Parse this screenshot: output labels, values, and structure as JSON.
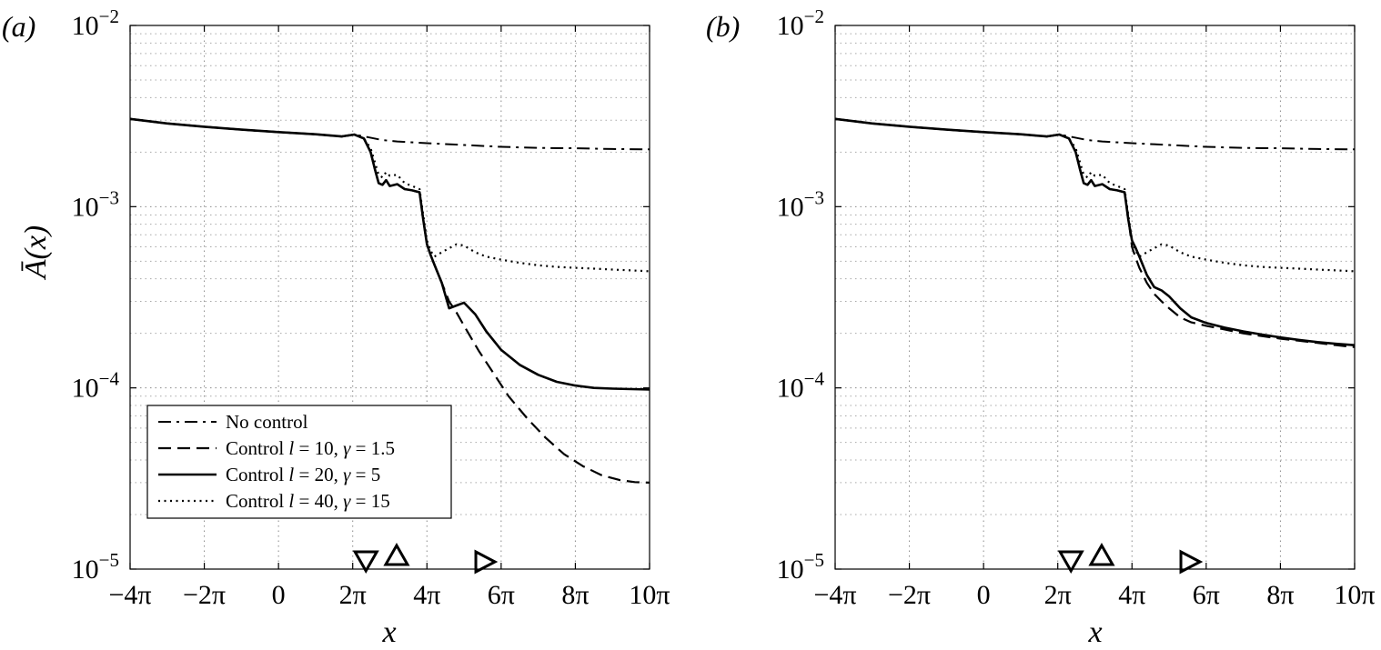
{
  "chart_data": [
    {
      "type": "line",
      "panel_label": "(a)",
      "xlabel": "x",
      "ylabel": "Ā(x)",
      "y_scale": "log",
      "xlim": [
        -12.566,
        31.416
      ],
      "ylim": [
        1e-05,
        0.01
      ],
      "x_ticks": [
        -12.566,
        -6.283,
        0,
        6.283,
        12.566,
        18.85,
        25.133,
        31.416
      ],
      "x_tick_labels": [
        "−4π",
        "−2π",
        "0",
        "2π",
        "4π",
        "6π",
        "8π",
        "10π"
      ],
      "y_ticks": [
        1e-05,
        0.0001,
        0.001,
        0.01
      ],
      "y_tick_labels": [
        {
          "base": "10",
          "exp": "−5"
        },
        {
          "base": "10",
          "exp": "−4"
        },
        {
          "base": "10",
          "exp": "−3"
        },
        {
          "base": "10",
          "exp": "−2"
        }
      ],
      "grid": "on",
      "legend_placement": "lower-left",
      "legend": [
        {
          "style": "dashdot",
          "label_prefix": "No control",
          "l": "",
          "gamma": ""
        },
        {
          "style": "dashed",
          "label_prefix": "Control",
          "l": "10",
          "gamma": "1.5"
        },
        {
          "style": "solid",
          "label_prefix": "Control",
          "l": "20",
          "gamma": "5"
        },
        {
          "style": "dotted",
          "label_prefix": "Control",
          "l": "40",
          "gamma": "15"
        }
      ],
      "markers": [
        {
          "shape": "triangle-down",
          "x": 7.4
        },
        {
          "shape": "triangle-up",
          "x": 10.0
        },
        {
          "shape": "triangle-right",
          "x": 17.4
        }
      ],
      "series": [
        {
          "style": "dashdot",
          "x": [
            -12.566,
            -9.42,
            -6.28,
            -3.14,
            0,
            3.14,
            5.34,
            6.41,
            7.54,
            8.8,
            10.05,
            12.57,
            15.71,
            18.85,
            21.99,
            25.13,
            28.27,
            31.416
          ],
          "y": [
            0.00305,
            0.00288,
            0.00276,
            0.00266,
            0.00258,
            0.00251,
            0.00244,
            0.0025,
            0.00242,
            0.00233,
            0.00229,
            0.00224,
            0.00219,
            0.00214,
            0.00211,
            0.0021,
            0.00208,
            0.00207
          ]
        },
        {
          "style": "solid",
          "x": [
            -12.566,
            -9.42,
            -6.28,
            -3.14,
            0,
            3.14,
            5.34,
            6.41,
            7.23,
            7.8,
            8.17,
            8.48,
            8.8,
            9.11,
            9.42,
            10.05,
            10.68,
            11.31,
            11.94,
            12.25,
            12.57,
            12.88,
            13.19,
            13.82,
            14.45,
            15.08,
            15.71,
            16.65,
            17.59,
            18.85,
            20.42,
            21.99,
            23.56,
            25.13,
            26.7,
            28.27,
            29.85,
            31.416
          ],
          "y": [
            0.00305,
            0.00288,
            0.00276,
            0.00266,
            0.00258,
            0.00251,
            0.00244,
            0.0025,
            0.00238,
            0.002,
            0.0016,
            0.00135,
            0.00132,
            0.0014,
            0.0013,
            0.00133,
            0.00125,
            0.00123,
            0.0012,
            0.00085,
            0.00062,
            0.00054,
            0.00048,
            0.00038,
            0.000275,
            0.000285,
            0.000295,
            0.000255,
            0.000205,
            0.000162,
            0.000134,
            0.000118,
            0.000108,
            0.000103,
            0.0001,
            9.9e-05,
            9.85e-05,
            9.8e-05
          ]
        },
        {
          "style": "dashed",
          "x": [
            -12.566,
            -9.42,
            -6.28,
            -3.14,
            0,
            3.14,
            5.34,
            6.41,
            7.23,
            7.8,
            8.17,
            8.48,
            8.8,
            9.11,
            9.42,
            10.05,
            10.68,
            11.31,
            11.94,
            12.25,
            12.57,
            12.88,
            13.19,
            13.82,
            14.45,
            15.08,
            15.71,
            16.96,
            18.22,
            19.48,
            21.05,
            22.62,
            24.19,
            25.76,
            27.33,
            28.9,
            30.16,
            31.416
          ],
          "y": [
            0.00305,
            0.00288,
            0.00276,
            0.00266,
            0.00258,
            0.00251,
            0.00244,
            0.0025,
            0.00238,
            0.002,
            0.0016,
            0.00135,
            0.00132,
            0.0014,
            0.0013,
            0.00133,
            0.00125,
            0.00123,
            0.0012,
            0.00085,
            0.00062,
            0.00054,
            0.00048,
            0.00038,
            0.0003,
            0.00026,
            0.00022,
            0.00016,
            0.00012,
            9e-05,
            6.8e-05,
            5.3e-05,
            4.3e-05,
            3.7e-05,
            3.3e-05,
            3.1e-05,
            3.02e-05,
            3e-05
          ]
        },
        {
          "style": "dotted",
          "x": [
            -12.566,
            -9.42,
            -6.28,
            -3.14,
            0,
            3.14,
            5.34,
            6.41,
            7.23,
            7.8,
            8.17,
            8.48,
            8.8,
            9.11,
            9.42,
            10.05,
            10.68,
            11.31,
            11.94,
            12.25,
            12.57,
            12.88,
            13.19,
            13.82,
            14.45,
            15.08,
            15.71,
            16.65,
            17.59,
            18.85,
            20.42,
            21.99,
            23.56,
            25.13,
            26.7,
            28.27,
            29.85,
            31.416
          ],
          "y": [
            0.00305,
            0.00288,
            0.00276,
            0.00266,
            0.00258,
            0.00251,
            0.00244,
            0.0025,
            0.00238,
            0.0021,
            0.00175,
            0.0015,
            0.00145,
            0.00155,
            0.00148,
            0.0015,
            0.00135,
            0.0013,
            0.00125,
            0.0009,
            0.00065,
            0.00057,
            0.00053,
            0.00056,
            0.00059,
            0.00062,
            0.00061,
            0.00056,
            0.00053,
            0.00051,
            0.00049,
            0.000475,
            0.000465,
            0.00046,
            0.000455,
            0.00045,
            0.000445,
            0.00044
          ]
        }
      ]
    },
    {
      "type": "line",
      "panel_label": "(b)",
      "xlabel": "x",
      "ylabel": "",
      "y_scale": "log",
      "xlim": [
        -12.566,
        31.416
      ],
      "ylim": [
        1e-05,
        0.01
      ],
      "x_ticks": [
        -12.566,
        -6.283,
        0,
        6.283,
        12.566,
        18.85,
        25.133,
        31.416
      ],
      "x_tick_labels": [
        "−4π",
        "−2π",
        "0",
        "2π",
        "4π",
        "6π",
        "8π",
        "10π"
      ],
      "y_ticks": [
        1e-05,
        0.0001,
        0.001,
        0.01
      ],
      "y_tick_labels": [
        {
          "base": "10",
          "exp": "−5"
        },
        {
          "base": "10",
          "exp": "−4"
        },
        {
          "base": "10",
          "exp": "−3"
        },
        {
          "base": "10",
          "exp": "−2"
        }
      ],
      "grid": "on",
      "legend": [],
      "markers": [
        {
          "shape": "triangle-down",
          "x": 7.4
        },
        {
          "shape": "triangle-up",
          "x": 10.0
        },
        {
          "shape": "triangle-right",
          "x": 17.4
        }
      ],
      "series": [
        {
          "style": "dashdot",
          "x": [
            -12.566,
            -9.42,
            -6.28,
            -3.14,
            0,
            3.14,
            5.34,
            6.41,
            7.54,
            8.8,
            10.05,
            12.57,
            15.71,
            18.85,
            21.99,
            25.13,
            28.27,
            31.416
          ],
          "y": [
            0.00305,
            0.00288,
            0.00276,
            0.00266,
            0.00258,
            0.00251,
            0.00244,
            0.0025,
            0.00242,
            0.00233,
            0.00229,
            0.00224,
            0.00219,
            0.00214,
            0.00211,
            0.0021,
            0.00208,
            0.00207
          ]
        },
        {
          "style": "dotted",
          "x": [
            -12.566,
            -9.42,
            -6.28,
            -3.14,
            0,
            3.14,
            5.34,
            6.41,
            7.23,
            7.8,
            8.17,
            8.48,
            8.8,
            9.11,
            9.42,
            10.05,
            10.68,
            11.31,
            11.94,
            12.25,
            12.57,
            12.88,
            13.19,
            13.82,
            14.45,
            15.08,
            15.71,
            16.65,
            17.59,
            18.85,
            20.42,
            21.99,
            23.56,
            25.13,
            26.7,
            28.27,
            29.85,
            31.416
          ],
          "y": [
            0.00305,
            0.00288,
            0.00276,
            0.00266,
            0.00258,
            0.00251,
            0.00244,
            0.0025,
            0.00238,
            0.0021,
            0.00175,
            0.0015,
            0.00145,
            0.00155,
            0.00148,
            0.0015,
            0.00135,
            0.0013,
            0.00125,
            0.0009,
            0.00065,
            0.00057,
            0.00053,
            0.00056,
            0.00059,
            0.00062,
            0.00061,
            0.00056,
            0.00053,
            0.00051,
            0.00049,
            0.000475,
            0.000465,
            0.00046,
            0.000455,
            0.00045,
            0.000445,
            0.00044
          ]
        },
        {
          "style": "dashed",
          "x": [
            -12.566,
            -9.42,
            -6.28,
            -3.14,
            0,
            3.14,
            5.34,
            6.41,
            7.23,
            7.8,
            8.17,
            8.48,
            8.8,
            9.11,
            9.42,
            10.05,
            10.68,
            11.31,
            11.94,
            12.25,
            12.57,
            12.88,
            13.19,
            13.82,
            14.45,
            15.08,
            15.71,
            16.65,
            17.59,
            18.85,
            20.42,
            21.99,
            23.56,
            25.13,
            26.7,
            28.27,
            29.85,
            31.416
          ],
          "y": [
            0.00305,
            0.00288,
            0.00276,
            0.00266,
            0.00258,
            0.00251,
            0.00244,
            0.0025,
            0.00238,
            0.002,
            0.0016,
            0.00135,
            0.00132,
            0.0014,
            0.0013,
            0.00133,
            0.00125,
            0.00123,
            0.0012,
            0.00087,
            0.0006,
            0.00052,
            0.00046,
            0.00038,
            0.00033,
            0.0003,
            0.000275,
            0.000245,
            0.00023,
            0.00022,
            0.00021,
            0.0002,
            0.000193,
            0.000187,
            0.000182,
            0.000177,
            0.000172,
            0.000168
          ]
        },
        {
          "style": "solid",
          "x": [
            -12.566,
            -9.42,
            -6.28,
            -3.14,
            0,
            3.14,
            5.34,
            6.41,
            7.23,
            7.8,
            8.17,
            8.48,
            8.8,
            9.11,
            9.42,
            10.05,
            10.68,
            11.31,
            11.94,
            12.25,
            12.57,
            12.88,
            13.19,
            13.82,
            14.45,
            15.08,
            15.71,
            16.65,
            17.59,
            18.85,
            20.42,
            21.99,
            23.56,
            25.13,
            26.7,
            28.27,
            29.85,
            31.416
          ],
          "y": [
            0.00305,
            0.00288,
            0.00276,
            0.00266,
            0.00258,
            0.00251,
            0.00244,
            0.0025,
            0.00238,
            0.002,
            0.0016,
            0.00135,
            0.00132,
            0.0014,
            0.0013,
            0.00133,
            0.00125,
            0.00123,
            0.0012,
            0.00085,
            0.00065,
            0.00059,
            0.00053,
            0.00042,
            0.00036,
            0.000345,
            0.00032,
            0.000275,
            0.000245,
            0.000228,
            0.000215,
            0.000205,
            0.000197,
            0.00019,
            0.000184,
            0.000179,
            0.000175,
            0.000172
          ]
        }
      ]
    }
  ]
}
